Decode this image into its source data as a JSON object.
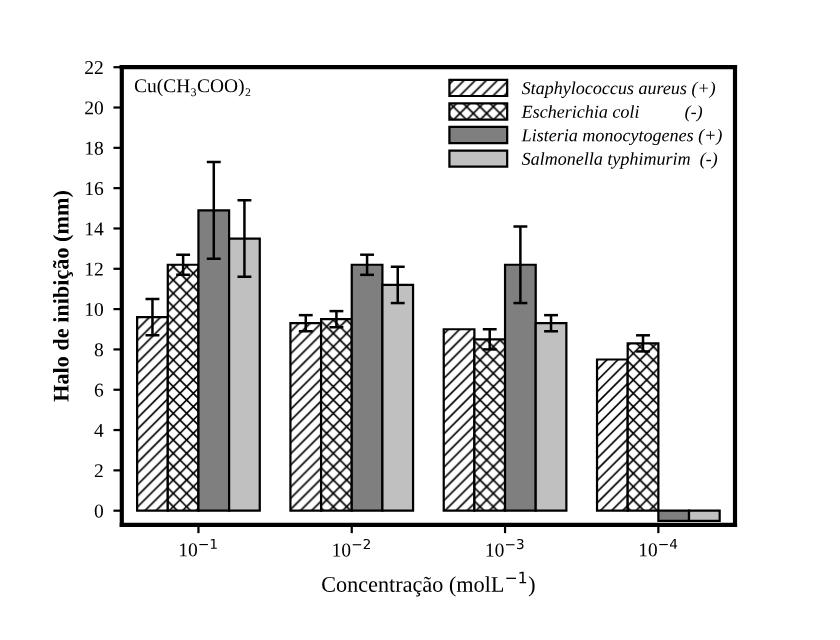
{
  "chart_data": {
    "type": "bar",
    "xlabel": "Concentração (molL$^{−1}$)",
    "ylabel": "Halo de inibição (mm)",
    "categories": [
      "10$^{−1}$",
      "10$^{−2}$",
      "10$^{−3}$",
      "10$^{−4}$"
    ],
    "series": [
      {
        "name": "Staphylococcus aureus (+)",
        "color": "#000000",
        "values": [
          9.6,
          9.3,
          9.0,
          7.5
        ],
        "errors": [
          0.9,
          0.4,
          null,
          null
        ]
      },
      {
        "name": "Escherichia coli          (-)",
        "color": "#000000",
        "values": [
          12.2,
          9.5,
          8.5,
          8.3
        ],
        "errors": [
          0.5,
          0.4,
          0.5,
          0.4
        ]
      },
      {
        "name": "Listeria monocytogenes (+)",
        "color": "#7f7f7f",
        "values": [
          14.9,
          12.2,
          12.2,
          -0.5
        ],
        "errors": [
          2.4,
          0.5,
          1.9,
          null
        ]
      },
      {
        "name": "Salmonella typhimurim  (-)",
        "color": "#c0c0c0",
        "values": [
          13.5,
          11.2,
          9.3,
          -0.5
        ],
        "errors": [
          1.9,
          0.9,
          0.4,
          null
        ]
      }
    ],
    "ylim": [
      -0.7,
      22
    ],
    "yticks": [
      0,
      2,
      4,
      6,
      8,
      10,
      12,
      14,
      16,
      18,
      20,
      22
    ],
    "annotations": [
      "Cu(CH₃COO)₂"
    ],
    "legend": "top right",
    "grid": false
  }
}
